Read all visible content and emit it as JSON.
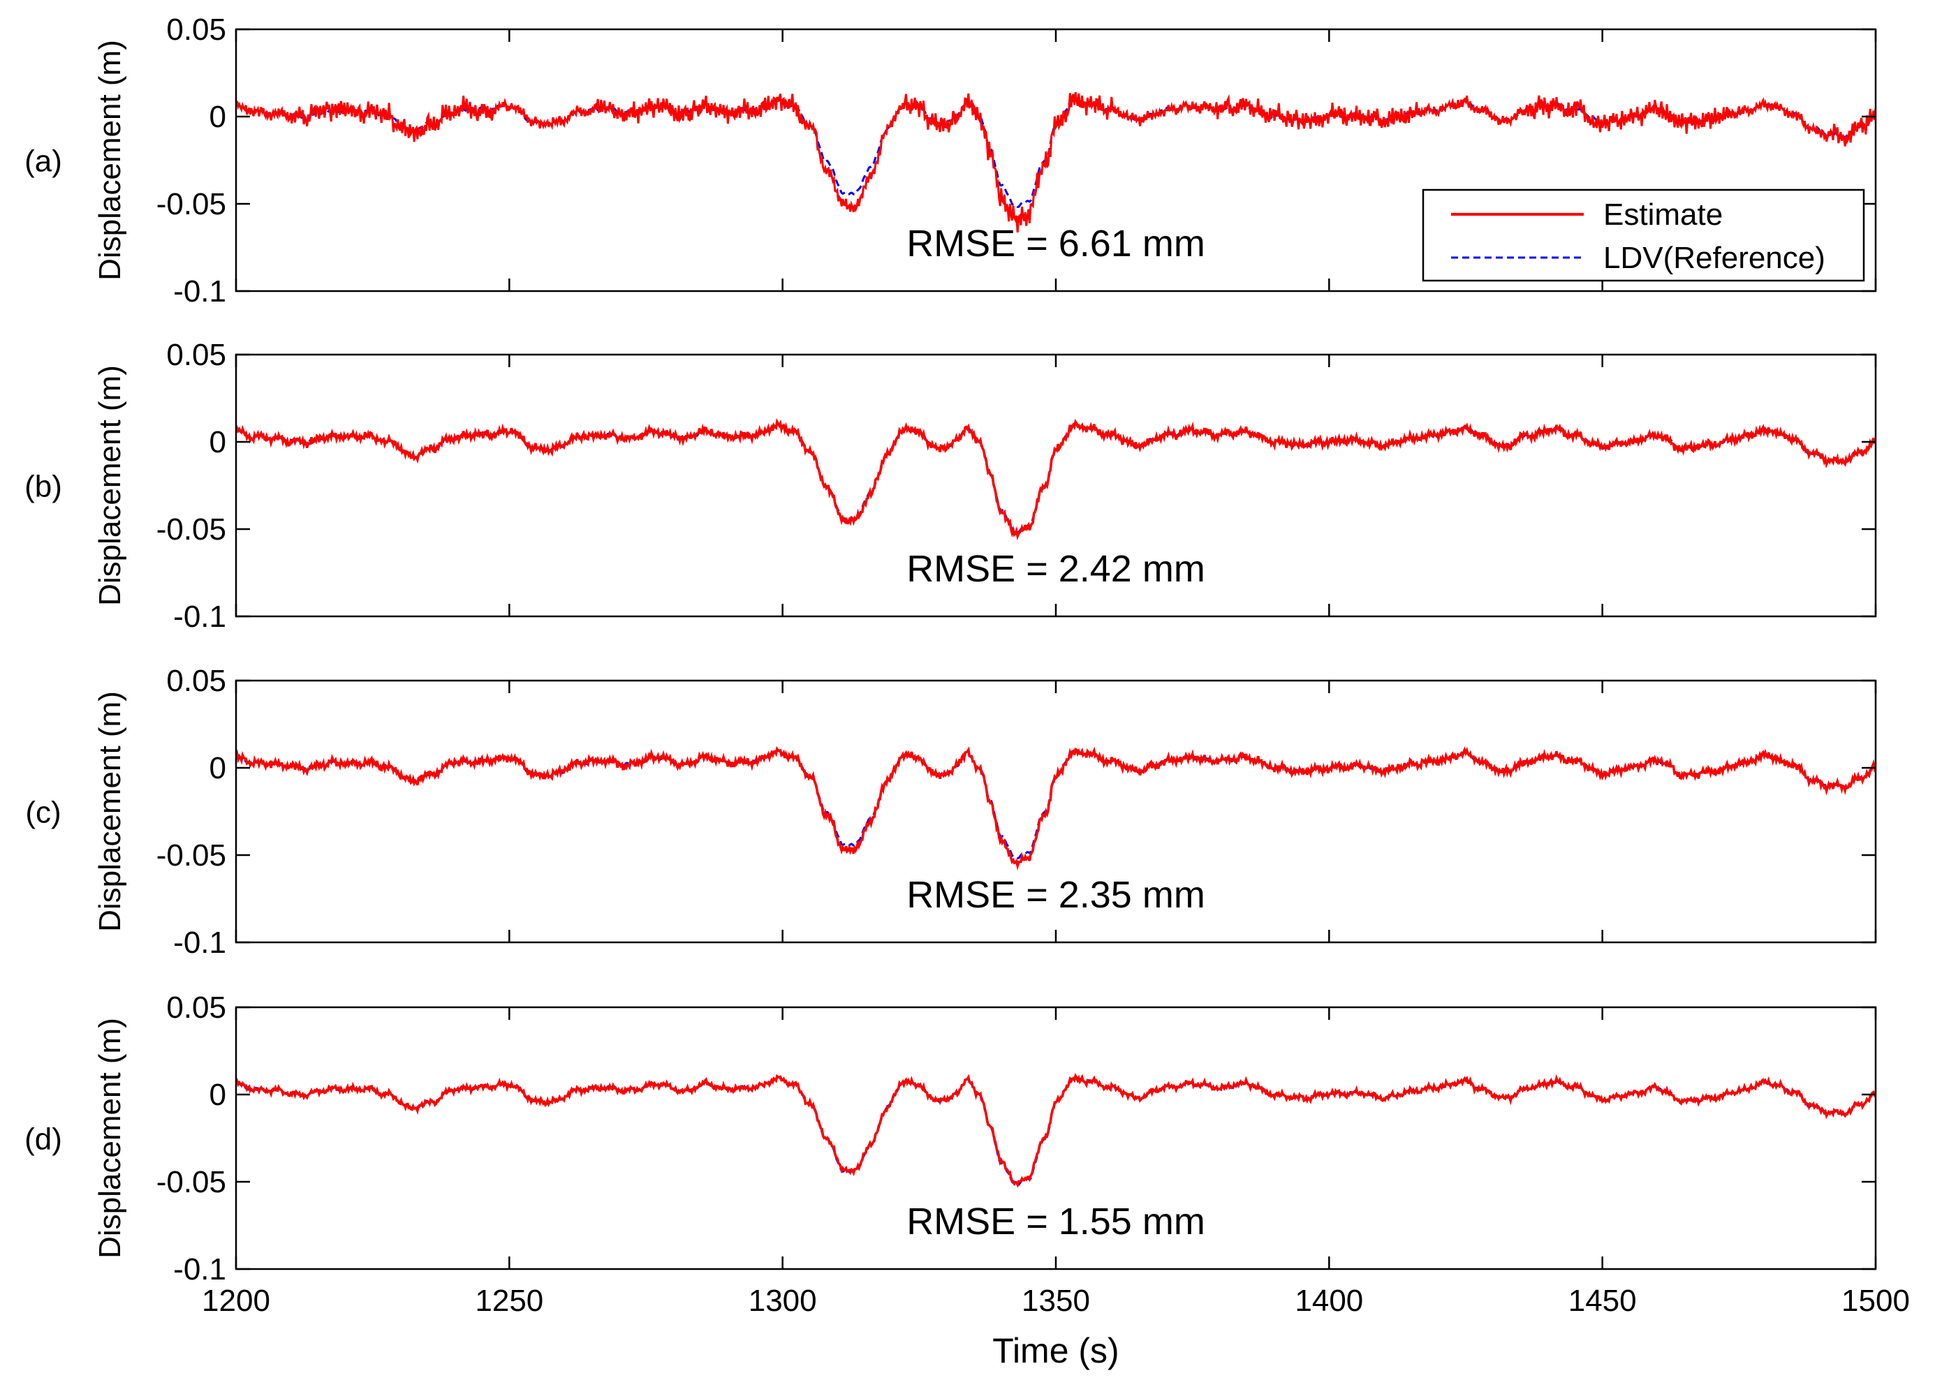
{
  "chart_data": {
    "type": "line",
    "xlabel": "Time (s)",
    "xlim": [
      1200,
      1500
    ],
    "xticks": [
      1200,
      1250,
      1300,
      1350,
      1400,
      1450,
      1500
    ],
    "xtick_labels": [
      "1200",
      "1250",
      "1300",
      "1350",
      "1400",
      "1450",
      "1500"
    ],
    "legend": {
      "location": "top-right of panel (a)",
      "entries": [
        {
          "label": "Estimate",
          "color": "#ff0000",
          "style": "solid"
        },
        {
          "label": "LDV(Reference)",
          "color": "#0000ff",
          "style": "dashed"
        }
      ]
    },
    "reference_profile": {
      "name": "LDV(Reference)",
      "x": [
        1200,
        1203,
        1207,
        1212,
        1218,
        1224,
        1228,
        1232,
        1236,
        1240,
        1245,
        1250,
        1255,
        1258,
        1263,
        1268,
        1272,
        1277,
        1282,
        1286,
        1290,
        1295,
        1299,
        1302,
        1305,
        1308,
        1311,
        1313,
        1316,
        1319,
        1322,
        1325,
        1327,
        1330,
        1332,
        1334,
        1336,
        1338,
        1340,
        1343,
        1345,
        1348,
        1350,
        1353,
        1356,
        1360,
        1365,
        1370,
        1375,
        1380,
        1385,
        1390,
        1395,
        1400,
        1405,
        1410,
        1415,
        1420,
        1425,
        1428,
        1432,
        1437,
        1441,
        1445,
        1450,
        1455,
        1460,
        1465,
        1470,
        1475,
        1480,
        1485,
        1488,
        1491,
        1494,
        1497,
        1500
      ],
      "y": [
        0.006,
        0.003,
        0.002,
        0.0,
        0.003,
        0.003,
        0.0,
        -0.008,
        -0.004,
        0.003,
        0.004,
        0.006,
        -0.004,
        -0.004,
        0.003,
        0.004,
        0.002,
        0.006,
        0.002,
        0.006,
        0.003,
        0.004,
        0.009,
        0.006,
        -0.005,
        -0.025,
        -0.043,
        -0.045,
        -0.03,
        -0.008,
        0.007,
        0.006,
        -0.002,
        -0.004,
        0.002,
        0.008,
        0.0,
        -0.018,
        -0.04,
        -0.052,
        -0.048,
        -0.025,
        -0.005,
        0.009,
        0.008,
        0.004,
        -0.002,
        0.004,
        0.006,
        0.004,
        0.006,
        0.0,
        -0.002,
        0.0,
        0.001,
        -0.002,
        0.002,
        0.004,
        0.008,
        0.003,
        -0.002,
        0.004,
        0.007,
        0.004,
        -0.003,
        0.0,
        0.004,
        -0.004,
        -0.002,
        0.002,
        0.007,
        0.002,
        -0.006,
        -0.01,
        -0.011,
        -0.006,
        0.0
      ]
    },
    "panels": [
      {
        "label": "(a)",
        "ylabel": "Displacement (m)",
        "ylim": [
          -0.1,
          0.05
        ],
        "yticks": [
          -0.1,
          -0.05,
          0,
          0.05
        ],
        "ytick_labels": [
          "-0.1",
          "-0.05",
          "0",
          "0.05"
        ],
        "annotation": "RMSE = 6.61 mm",
        "rmse_mm": 6.61,
        "show_legend": true,
        "noise_amplitude": 0.0065,
        "min_y": -0.06
      },
      {
        "label": "(b)",
        "ylabel": "Displacement (m)",
        "ylim": [
          -0.1,
          0.05
        ],
        "yticks": [
          -0.1,
          -0.05,
          0,
          0.05
        ],
        "ytick_labels": [
          "-0.1",
          "-0.05",
          "0",
          "0.05"
        ],
        "annotation": "RMSE = 2.42 mm",
        "rmse_mm": 2.42,
        "show_legend": false,
        "noise_amplitude": 0.0022,
        "min_y": -0.053
      },
      {
        "label": "(c)",
        "ylabel": "Displacement (m)",
        "ylim": [
          -0.1,
          0.05
        ],
        "yticks": [
          -0.1,
          -0.05,
          0,
          0.05
        ],
        "ytick_labels": [
          "-0.1",
          "-0.05",
          "0",
          "0.05"
        ],
        "annotation": "RMSE = 2.35 mm",
        "rmse_mm": 2.35,
        "show_legend": false,
        "noise_amplitude": 0.0021,
        "min_y": -0.055
      },
      {
        "label": "(d)",
        "ylabel": "Displacement (m)",
        "ylim": [
          -0.1,
          0.05
        ],
        "yticks": [
          -0.1,
          -0.05,
          0,
          0.05
        ],
        "ytick_labels": [
          "-0.1",
          "-0.05",
          "0",
          "0.05"
        ],
        "annotation": "RMSE = 1.55 mm",
        "rmse_mm": 1.55,
        "show_legend": false,
        "noise_amplitude": 0.0014,
        "min_y": -0.051
      }
    ]
  }
}
